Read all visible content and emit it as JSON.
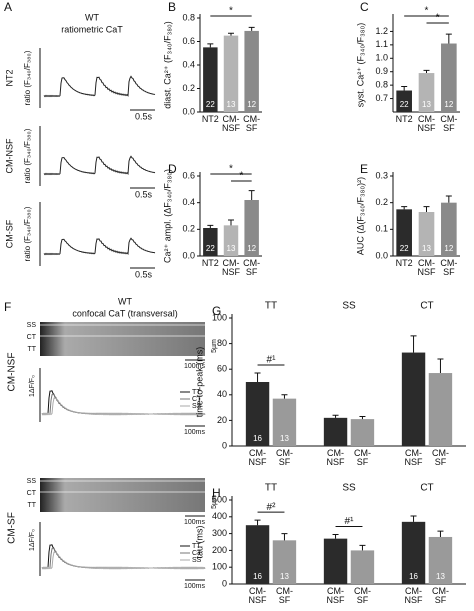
{
  "panel_a": {
    "letter": "A",
    "title": "WT",
    "subtitle": "ratiometric CaT",
    "rows": [
      "NT2",
      "CM-NSF",
      "CM-SF"
    ],
    "ylabel": "ratio (F₃₄₀/F₃₈₀)",
    "scale": "0.5s"
  },
  "panel_f": {
    "letter": "F",
    "title": "WT",
    "subtitle": "confocal CaT (transversal)",
    "rows": [
      "CM-NSF",
      "CM-SF"
    ],
    "regions": [
      "SS",
      "CT",
      "TT"
    ],
    "space_scale": "5µm",
    "time_scale": "100ms",
    "legend": [
      "TT",
      "CT",
      "SS"
    ],
    "trace_scale": "1ΔF/F₀"
  },
  "chart_data": [
    {
      "type": "bar",
      "panel": "B",
      "ylabel": "diast. Ca²⁺ (F₃₄₀/F₃₈₀)",
      "categories": [
        "NT2",
        "CM-NSF",
        "CM-SF"
      ],
      "values": [
        0.55,
        0.65,
        0.69
      ],
      "errors": [
        0.03,
        0.02,
        0.03
      ],
      "n_labels": [
        22,
        13,
        12
      ],
      "colors": [
        "#2b2b2b",
        "#b4b4b4",
        "#8a8a8a"
      ],
      "ylim": [
        0,
        0.8
      ],
      "yticks": [
        {
          "value": 0,
          "label": "0.0"
        },
        0.2,
        0.4,
        0.6,
        0.8
      ],
      "annotations": [
        {
          "text": "*",
          "from": 0,
          "to": 2
        }
      ]
    },
    {
      "type": "bar",
      "panel": "C",
      "ylabel": "syst. Ca²⁺ (F₃₄₀/F₃₈₀)",
      "categories": [
        "NT2",
        "CM-NSF",
        "CM-SF"
      ],
      "values": [
        0.76,
        0.89,
        1.11
      ],
      "errors": [
        0.03,
        0.02,
        0.07
      ],
      "n_labels": [
        22,
        13,
        12
      ],
      "colors": [
        "#2b2b2b",
        "#b4b4b4",
        "#8a8a8a"
      ],
      "ylim": [
        0.6,
        1.3
      ],
      "yticks": [
        0.7,
        0.8,
        0.9,
        {
          "value": 1,
          "label": "1.0"
        },
        1.1,
        1.2
      ],
      "annotations": [
        {
          "text": "*",
          "from": 0,
          "to": 2
        },
        {
          "text": "*",
          "from": 1,
          "to": 2
        }
      ]
    },
    {
      "type": "bar",
      "panel": "D",
      "ylabel": "Ca²⁺ ampl. (ΔF₃₄₀/F₃₈₀)",
      "categories": [
        "NT2",
        "CM-NSF",
        "CM-SF"
      ],
      "values": [
        0.21,
        0.23,
        0.42
      ],
      "errors": [
        0.02,
        0.04,
        0.07
      ],
      "n_labels": [
        22,
        13,
        12
      ],
      "colors": [
        "#2b2b2b",
        "#b4b4b4",
        "#8a8a8a"
      ],
      "ylim": [
        0,
        0.6
      ],
      "yticks": [
        {
          "value": 0,
          "label": "0.0"
        },
        0.2,
        0.4,
        0.6
      ],
      "annotations": [
        {
          "text": "*",
          "from": 0,
          "to": 2
        },
        {
          "text": "*",
          "from": 1,
          "to": 2
        }
      ]
    },
    {
      "type": "bar",
      "panel": "E",
      "ylabel": "AUC (Δ(F₃₄₀/F₃₈₀)²)",
      "categories": [
        "NT2",
        "CM-NSF",
        "CM-SF"
      ],
      "values": [
        0.175,
        0.165,
        0.2
      ],
      "errors": [
        0.01,
        0.02,
        0.025
      ],
      "n_labels": [
        22,
        13,
        12
      ],
      "colors": [
        "#2b2b2b",
        "#b4b4b4",
        "#8a8a8a"
      ],
      "ylim": [
        0,
        0.3
      ],
      "yticks": [
        {
          "value": 0,
          "label": "0.0"
        },
        0.1,
        0.2,
        0.3
      ],
      "annotations": []
    },
    {
      "type": "bar",
      "panel": "G",
      "ylabel": "time-to-peak (ms)",
      "groups": [
        "TT",
        "SS",
        "CT"
      ],
      "categories": [
        "CM-NSF",
        "CM-SF",
        "CM-NSF",
        "CM-SF",
        "CM-NSF",
        "CM-SF"
      ],
      "values": [
        50,
        37,
        22,
        21,
        73,
        57
      ],
      "errors": [
        7,
        3,
        2,
        2,
        13,
        11
      ],
      "n_labels": [
        16,
        13,
        null,
        null,
        null,
        null
      ],
      "colors": [
        "#2b2b2b",
        "#9a9a9a",
        "#2b2b2b",
        "#9a9a9a",
        "#2b2b2b",
        "#9a9a9a"
      ],
      "ylim": [
        0,
        100
      ],
      "yticks": [
        0,
        20,
        40,
        60,
        80,
        100
      ],
      "annotations": [
        {
          "text": "#¹",
          "from": 0,
          "to": 1
        }
      ]
    },
    {
      "type": "bar",
      "panel": "H",
      "ylabel": "tau (ms)",
      "groups": [
        "TT",
        "SS",
        "CT"
      ],
      "categories": [
        "CM-NSF",
        "CM-SF",
        "CM-NSF",
        "CM-SF",
        "CM-NSF",
        "CM-SF"
      ],
      "values": [
        350,
        260,
        270,
        200,
        370,
        280
      ],
      "errors": [
        30,
        40,
        25,
        30,
        35,
        35
      ],
      "n_labels": [
        16,
        13,
        null,
        null,
        16,
        13
      ],
      "colors": [
        "#2b2b2b",
        "#9a9a9a",
        "#2b2b2b",
        "#9a9a9a",
        "#2b2b2b",
        "#9a9a9a"
      ],
      "ylim": [
        0,
        500
      ],
      "yticks": [
        0,
        100,
        200,
        300,
        400,
        500
      ],
      "annotations": [
        {
          "text": "#²",
          "from": 0,
          "to": 1
        },
        {
          "text": "#¹",
          "from": 2,
          "to": 3
        }
      ]
    }
  ]
}
